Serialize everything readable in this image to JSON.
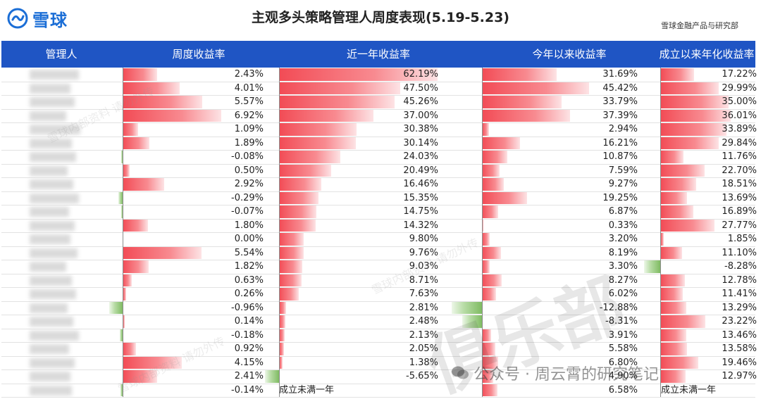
{
  "brand": {
    "logo_text": "雪球",
    "accent": "#1b6ed6"
  },
  "title": "主观多头策略管理人周度表现(5.19-5.23)",
  "org": "雪球金融产品与研究部",
  "header": {
    "color": "#1f55c4",
    "columns": [
      "管理人",
      "周度收益率",
      "近一年收益率",
      "今年以来收益率",
      "成立以来年化收益率"
    ]
  },
  "colors": {
    "positive": "#f24b55",
    "negative": "#7fbb62"
  },
  "scales": {
    "week_max": 6.92,
    "year_max": 62.19,
    "ytd_max": 45.42,
    "annual_max": 36.01
  },
  "rows": [
    {
      "week": "2.43%",
      "year": "62.19%",
      "ytd": "31.69%",
      "annual": "17.22%",
      "w": 2.43,
      "y": 62.19,
      "t": 31.69,
      "a": 17.22
    },
    {
      "week": "4.01%",
      "year": "47.50%",
      "ytd": "45.42%",
      "annual": "29.99%",
      "w": 4.01,
      "y": 47.5,
      "t": 45.42,
      "a": 29.99
    },
    {
      "week": "5.57%",
      "year": "45.26%",
      "ytd": "33.79%",
      "annual": "35.00%",
      "w": 5.57,
      "y": 45.26,
      "t": 33.79,
      "a": 35.0
    },
    {
      "week": "6.92%",
      "year": "37.00%",
      "ytd": "37.39%",
      "annual": "36.01%",
      "w": 6.92,
      "y": 37.0,
      "t": 37.39,
      "a": 36.01
    },
    {
      "week": "1.09%",
      "year": "30.38%",
      "ytd": "2.94%",
      "annual": "33.89%",
      "w": 1.09,
      "y": 30.38,
      "t": 2.94,
      "a": 33.89
    },
    {
      "week": "1.89%",
      "year": "30.14%",
      "ytd": "16.21%",
      "annual": "29.84%",
      "w": 1.89,
      "y": 30.14,
      "t": 16.21,
      "a": 29.84
    },
    {
      "week": "-0.08%",
      "year": "24.03%",
      "ytd": "10.87%",
      "annual": "11.76%",
      "w": -0.08,
      "y": 24.03,
      "t": 10.87,
      "a": 11.76
    },
    {
      "week": "0.50%",
      "year": "20.49%",
      "ytd": "7.59%",
      "annual": "22.70%",
      "w": 0.5,
      "y": 20.49,
      "t": 7.59,
      "a": 22.7
    },
    {
      "week": "2.92%",
      "year": "16.46%",
      "ytd": "9.27%",
      "annual": "18.51%",
      "w": 2.92,
      "y": 16.46,
      "t": 9.27,
      "a": 18.51
    },
    {
      "week": "-0.29%",
      "year": "15.35%",
      "ytd": "19.25%",
      "annual": "13.69%",
      "w": -0.29,
      "y": 15.35,
      "t": 19.25,
      "a": 13.69
    },
    {
      "week": "-0.07%",
      "year": "14.75%",
      "ytd": "6.87%",
      "annual": "16.89%",
      "w": -0.07,
      "y": 14.75,
      "t": 6.87,
      "a": 16.89
    },
    {
      "week": "1.80%",
      "year": "14.32%",
      "ytd": "0.33%",
      "annual": "27.77%",
      "w": 1.8,
      "y": 14.32,
      "t": 0.33,
      "a": 27.77
    },
    {
      "week": "0.00%",
      "year": "9.80%",
      "ytd": "3.20%",
      "annual": "1.85%",
      "w": 0.0,
      "y": 9.8,
      "t": 3.2,
      "a": 1.85
    },
    {
      "week": "5.54%",
      "year": "9.76%",
      "ytd": "8.19%",
      "annual": "11.10%",
      "w": 5.54,
      "y": 9.76,
      "t": 8.19,
      "a": 11.1
    },
    {
      "week": "1.82%",
      "year": "9.03%",
      "ytd": "3.30%",
      "annual": "-8.28%",
      "w": 1.82,
      "y": 9.03,
      "t": 3.3,
      "a": -8.28
    },
    {
      "week": "0.63%",
      "year": "8.71%",
      "ytd": "8.27%",
      "annual": "12.78%",
      "w": 0.63,
      "y": 8.71,
      "t": 8.27,
      "a": 12.78
    },
    {
      "week": "0.26%",
      "year": "7.63%",
      "ytd": "6.02%",
      "annual": "11.41%",
      "w": 0.26,
      "y": 7.63,
      "t": 6.02,
      "a": 11.41
    },
    {
      "week": "-0.96%",
      "year": "2.81%",
      "ytd": "-12.88%",
      "annual": "13.29%",
      "w": -0.96,
      "y": 2.81,
      "t": -12.88,
      "a": 13.29
    },
    {
      "week": "0.14%",
      "year": "2.48%",
      "ytd": "-8.31%",
      "annual": "23.22%",
      "w": 0.14,
      "y": 2.48,
      "t": -8.31,
      "a": 23.22
    },
    {
      "week": "-0.18%",
      "year": "2.13%",
      "ytd": "3.91%",
      "annual": "13.46%",
      "w": -0.18,
      "y": 2.13,
      "t": 3.91,
      "a": 13.46
    },
    {
      "week": "0.92%",
      "year": "2.05%",
      "ytd": "5.58%",
      "annual": "13.58%",
      "w": 0.92,
      "y": 2.05,
      "t": 5.58,
      "a": 13.58
    },
    {
      "week": "4.15%",
      "year": "1.38%",
      "ytd": "6.80%",
      "annual": "19.46%",
      "w": 4.15,
      "y": 1.38,
      "t": 6.8,
      "a": 19.46
    },
    {
      "week": "2.41%",
      "year": "-5.65%",
      "ytd": "4.90%",
      "annual": "12.97%",
      "w": 2.41,
      "y": -5.65,
      "t": 4.9,
      "a": 12.97
    },
    {
      "week": "-0.14%",
      "year": "",
      "ytd": "6.58%",
      "annual": "",
      "w": -0.14,
      "y": null,
      "t": 6.58,
      "a": null,
      "year_note": "成立未满一年",
      "annual_note": "成立未满一年"
    }
  ],
  "watermarks": {
    "wechat": "公众号 · 周云霄的研究笔记",
    "big": "俱乐部"
  }
}
